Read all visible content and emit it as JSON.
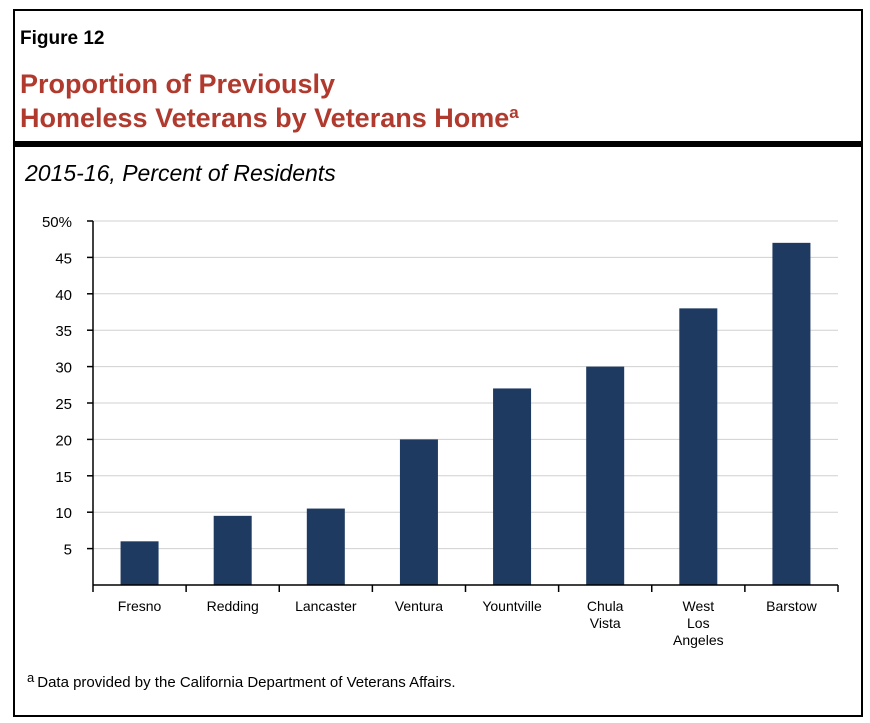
{
  "figure": {
    "label": "Figure 12",
    "title_line1": "Proportion of Previously",
    "title_line2": "Homeless Veterans by Veterans Home",
    "title_superscript": "a",
    "subtitle": "2015-16, Percent of Residents"
  },
  "footnote": {
    "marker": "a",
    "text": "Data provided by the California Department of Veterans Affairs."
  },
  "colors": {
    "bar": "#1f3a60",
    "title": "#b03a2e",
    "grid": "#d0d0d0",
    "axis": "#000000"
  },
  "chart_data": {
    "type": "bar",
    "categories": [
      [
        "Fresno"
      ],
      [
        "Redding"
      ],
      [
        "Lancaster"
      ],
      [
        "Ventura"
      ],
      [
        "Yountville"
      ],
      [
        "Chula",
        "Vista"
      ],
      [
        "West",
        "Los",
        "Angeles"
      ],
      [
        "Barstow"
      ]
    ],
    "values": [
      6,
      9.5,
      10.5,
      20,
      27,
      30,
      38,
      47
    ],
    "ylim": [
      0,
      50
    ],
    "yticks": [
      5,
      10,
      15,
      20,
      25,
      30,
      35,
      40,
      45,
      50
    ],
    "ytick_labels": [
      "5",
      "10",
      "15",
      "20",
      "25",
      "30",
      "35",
      "40",
      "45",
      "50%"
    ],
    "grid": true,
    "legend": "none"
  }
}
